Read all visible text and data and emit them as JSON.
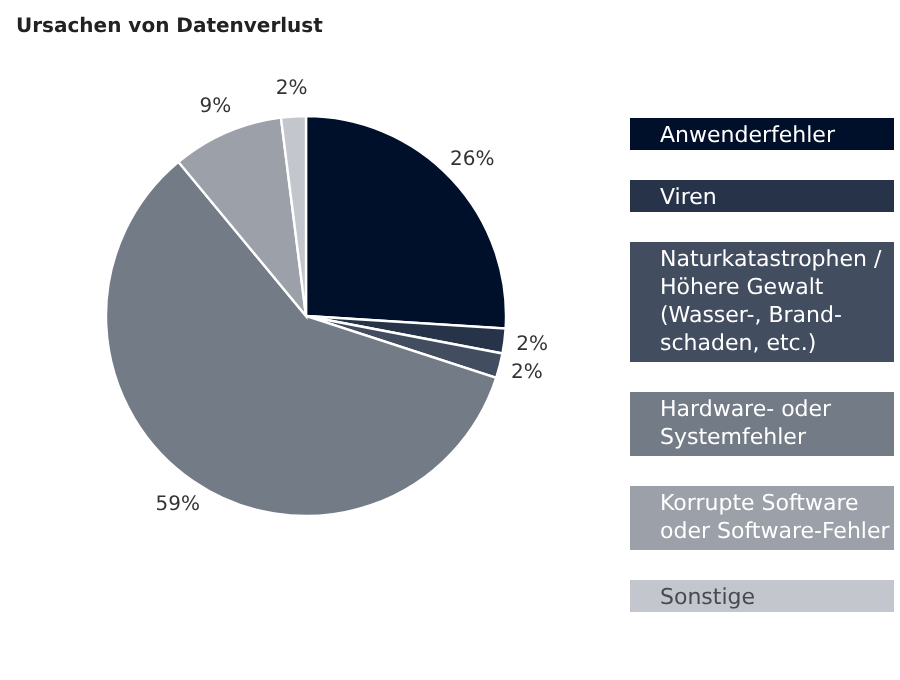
{
  "chart_data": {
    "type": "pie",
    "title": "Ursachen von Datenverlust",
    "categories": [
      "Anwenderfehler",
      "Viren",
      "Naturkatastrophen /\nHöhere Gewalt\n(Wasser-, Brand-\nschaden, etc.)",
      "Hardware- oder\nSystemfehler",
      "Korrupte Software\noder Software-Fehler",
      "Sonstige"
    ],
    "values": [
      26,
      2,
      2,
      59,
      9,
      2
    ],
    "colors": [
      "#00102a",
      "#273349",
      "#424d60",
      "#737b87",
      "#9ba0a9",
      "#c3c6cc"
    ],
    "value_labels": [
      "26%",
      "2%",
      "2%",
      "59%",
      "9%",
      "2%"
    ],
    "legend": "right"
  }
}
